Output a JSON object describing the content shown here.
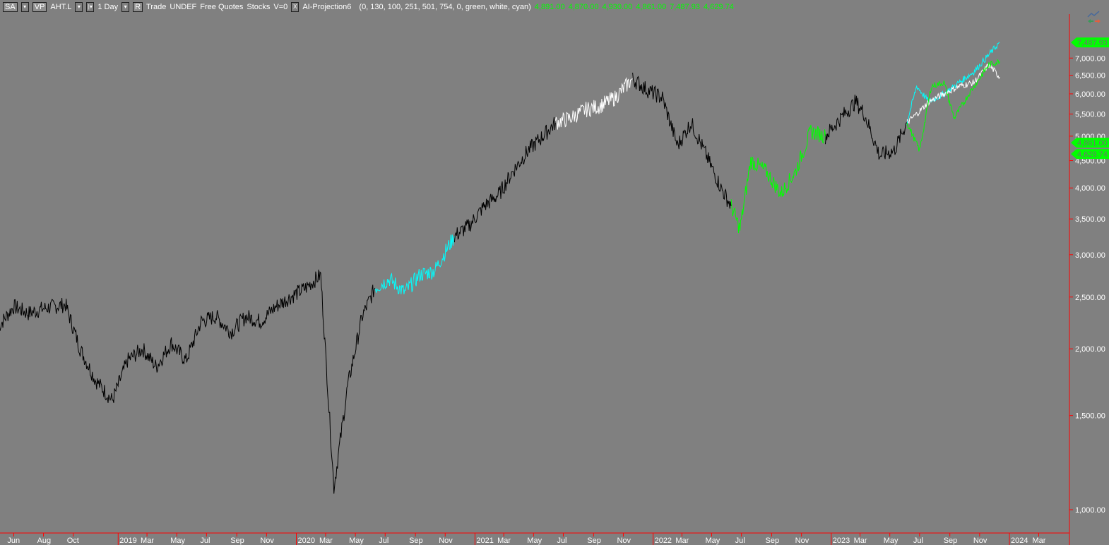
{
  "header": {
    "sa_button": "SA",
    "vp_button": "VP",
    "symbol": "AHT.L",
    "interval": "1 Day",
    "r_button": "R",
    "info": [
      "Trade",
      "UNDEF",
      "Free Quotes",
      "Stocks",
      "V=0"
    ],
    "close_button": "X",
    "indicator_name": "AI-Projection6",
    "indicator_params": "(0, 130, 100, 251, 501, 754, 0, green, white, cyan)",
    "values": [
      "4,891.00",
      "4,870.00",
      "4,930.00",
      "4,861.00",
      "7,487.93",
      "4,629.74"
    ]
  },
  "colors": {
    "background": "#808080",
    "axis": "#ff0000",
    "price": "#000000",
    "green": "#00ff00",
    "white": "#ffffff",
    "cyan": "#00ffff"
  },
  "chart_data": {
    "type": "line",
    "y_scale": "log",
    "ylim": [
      950,
      7800
    ],
    "y_ticks": [
      "1,000.00",
      "1,500.00",
      "2,000.00",
      "2,500.00",
      "3,000.00",
      "3,500.00",
      "4,000.00",
      "4,500.00",
      "5,000.00",
      "5,500.00",
      "6,000.00",
      "6,500.00",
      "7,000.00"
    ],
    "y_tick_values": [
      1000,
      1500,
      2000,
      2500,
      3000,
      3500,
      4000,
      4500,
      5000,
      5500,
      6000,
      6500,
      7000
    ],
    "x_range": [
      "2018-05-01",
      "2024-04-15"
    ],
    "x_ticks": [
      {
        "date": "2018-06-01",
        "label": "Jun"
      },
      {
        "date": "2018-08-01",
        "label": "Aug"
      },
      {
        "date": "2018-10-01",
        "label": "Oct"
      },
      {
        "date": "2019-01-01",
        "label": "2019",
        "year": true
      },
      {
        "date": "2019-03-01",
        "label": "Mar"
      },
      {
        "date": "2019-05-01",
        "label": "May"
      },
      {
        "date": "2019-07-01",
        "label": "Jul"
      },
      {
        "date": "2019-09-01",
        "label": "Sep"
      },
      {
        "date": "2019-11-01",
        "label": "Nov"
      },
      {
        "date": "2020-01-01",
        "label": "2020",
        "year": true
      },
      {
        "date": "2020-03-01",
        "label": "Mar"
      },
      {
        "date": "2020-05-01",
        "label": "May"
      },
      {
        "date": "2020-07-01",
        "label": "Jul"
      },
      {
        "date": "2020-09-01",
        "label": "Sep"
      },
      {
        "date": "2020-11-01",
        "label": "Nov"
      },
      {
        "date": "2021-01-01",
        "label": "2021",
        "year": true
      },
      {
        "date": "2021-03-01",
        "label": "Mar"
      },
      {
        "date": "2021-05-01",
        "label": "May"
      },
      {
        "date": "2021-07-01",
        "label": "Jul"
      },
      {
        "date": "2021-09-01",
        "label": "Sep"
      },
      {
        "date": "2021-11-01",
        "label": "Nov"
      },
      {
        "date": "2022-01-01",
        "label": "2022",
        "year": true
      },
      {
        "date": "2022-03-01",
        "label": "Mar"
      },
      {
        "date": "2022-05-01",
        "label": "May"
      },
      {
        "date": "2022-07-01",
        "label": "Jul"
      },
      {
        "date": "2022-09-01",
        "label": "Sep"
      },
      {
        "date": "2022-11-01",
        "label": "Nov"
      },
      {
        "date": "2023-01-01",
        "label": "2023",
        "year": true
      },
      {
        "date": "2023-03-01",
        "label": "Mar"
      },
      {
        "date": "2023-05-01",
        "label": "May"
      },
      {
        "date": "2023-07-01",
        "label": "Jul"
      },
      {
        "date": "2023-09-01",
        "label": "Sep"
      },
      {
        "date": "2023-11-01",
        "label": "Nov"
      },
      {
        "date": "2024-01-01",
        "label": "2024",
        "year": true
      },
      {
        "date": "2024-03-01",
        "label": "Mar"
      }
    ],
    "price_labels": [
      {
        "value": 7487.93,
        "label": "7,487.93"
      },
      {
        "value": 4861.0,
        "label": "4,861.00"
      },
      {
        "value": 4629.74,
        "label": "4,629.74"
      }
    ],
    "series": [
      {
        "color": "black",
        "x": [
          "2018-05-01",
          "2018-06-01",
          "2018-07-01",
          "2018-08-01",
          "2018-09-15",
          "2018-10-15",
          "2018-11-15",
          "2018-12-20",
          "2019-01-20",
          "2019-02-20",
          "2019-03-20",
          "2019-04-20",
          "2019-05-20",
          "2019-06-20",
          "2019-07-20",
          "2019-08-20",
          "2019-09-20",
          "2019-10-20",
          "2019-11-20",
          "2019-12-20",
          "2020-01-20",
          "2020-02-20",
          "2020-03-18",
          "2020-04-15",
          "2020-05-15",
          "2020-06-10"
        ],
        "values": [
          2200,
          2400,
          2330,
          2380,
          2420,
          2000,
          1750,
          1600,
          1900,
          2000,
          1850,
          2050,
          1900,
          2250,
          2300,
          2150,
          2300,
          2250,
          2400,
          2500,
          2600,
          2750,
          1100,
          1700,
          2300,
          2600
        ]
      },
      {
        "color": "cyan",
        "x": [
          "2020-06-10",
          "2020-07-10",
          "2020-08-10",
          "2020-09-10",
          "2020-10-10",
          "2020-11-20"
        ],
        "values": [
          2600,
          2700,
          2550,
          2750,
          2800,
          3250
        ]
      },
      {
        "color": "black",
        "x": [
          "2020-11-20",
          "2020-12-20",
          "2021-01-20",
          "2021-02-20",
          "2021-03-20",
          "2021-04-20",
          "2021-05-20",
          "2021-06-15"
        ],
        "values": [
          3250,
          3400,
          3700,
          3900,
          4300,
          4700,
          5000,
          5300
        ]
      },
      {
        "color": "white",
        "x": [
          "2021-06-15",
          "2021-07-15",
          "2021-08-15",
          "2021-09-15",
          "2021-10-15",
          "2021-11-20"
        ],
        "values": [
          5300,
          5400,
          5600,
          5700,
          5900,
          6400
        ]
      },
      {
        "color": "black",
        "x": [
          "2021-11-20",
          "2021-12-20",
          "2022-01-20",
          "2022-02-20",
          "2022-03-20",
          "2022-04-20",
          "2022-05-20",
          "2022-06-10"
        ],
        "values": [
          6400,
          6100,
          5900,
          4800,
          5300,
          4600,
          4000,
          3700
        ]
      },
      {
        "color": "green",
        "x": [
          "2022-06-10",
          "2022-06-28",
          "2022-07-20",
          "2022-08-20",
          "2022-09-20",
          "2022-10-20",
          "2022-11-20",
          "2022-12-20"
        ],
        "values": [
          3700,
          3350,
          4500,
          4300,
          3900,
          4300,
          5100,
          5000
        ]
      },
      {
        "color": "black",
        "x": [
          "2022-12-20",
          "2023-01-20",
          "2023-02-20",
          "2023-03-10",
          "2023-04-10",
          "2023-05-10",
          "2023-06-05"
        ],
        "values": [
          5000,
          5400,
          5800,
          5500,
          4600,
          4700,
          5300
        ]
      },
      {
        "color": "cyan",
        "x": [
          "2023-06-05",
          "2023-06-25",
          "2023-07-20",
          "2023-08-20",
          "2023-09-20",
          "2023-10-20",
          "2023-11-20",
          "2023-12-12"
        ],
        "values": [
          5300,
          6200,
          5800,
          6000,
          6300,
          6600,
          7100,
          7490
        ]
      },
      {
        "color": "white",
        "x": [
          "2023-06-05",
          "2023-06-25",
          "2023-07-20",
          "2023-08-20",
          "2023-09-20",
          "2023-10-20",
          "2023-11-20",
          "2023-12-12"
        ],
        "values": [
          5300,
          5500,
          5800,
          6000,
          6200,
          6300,
          6800,
          6450
        ]
      },
      {
        "color": "green",
        "x": [
          "2023-06-05",
          "2023-07-01",
          "2023-07-25",
          "2023-08-20",
          "2023-09-10",
          "2023-10-10",
          "2023-11-20",
          "2023-12-12"
        ],
        "values": [
          5300,
          4700,
          6200,
          6300,
          5400,
          6000,
          6800,
          6900
        ]
      }
    ]
  }
}
